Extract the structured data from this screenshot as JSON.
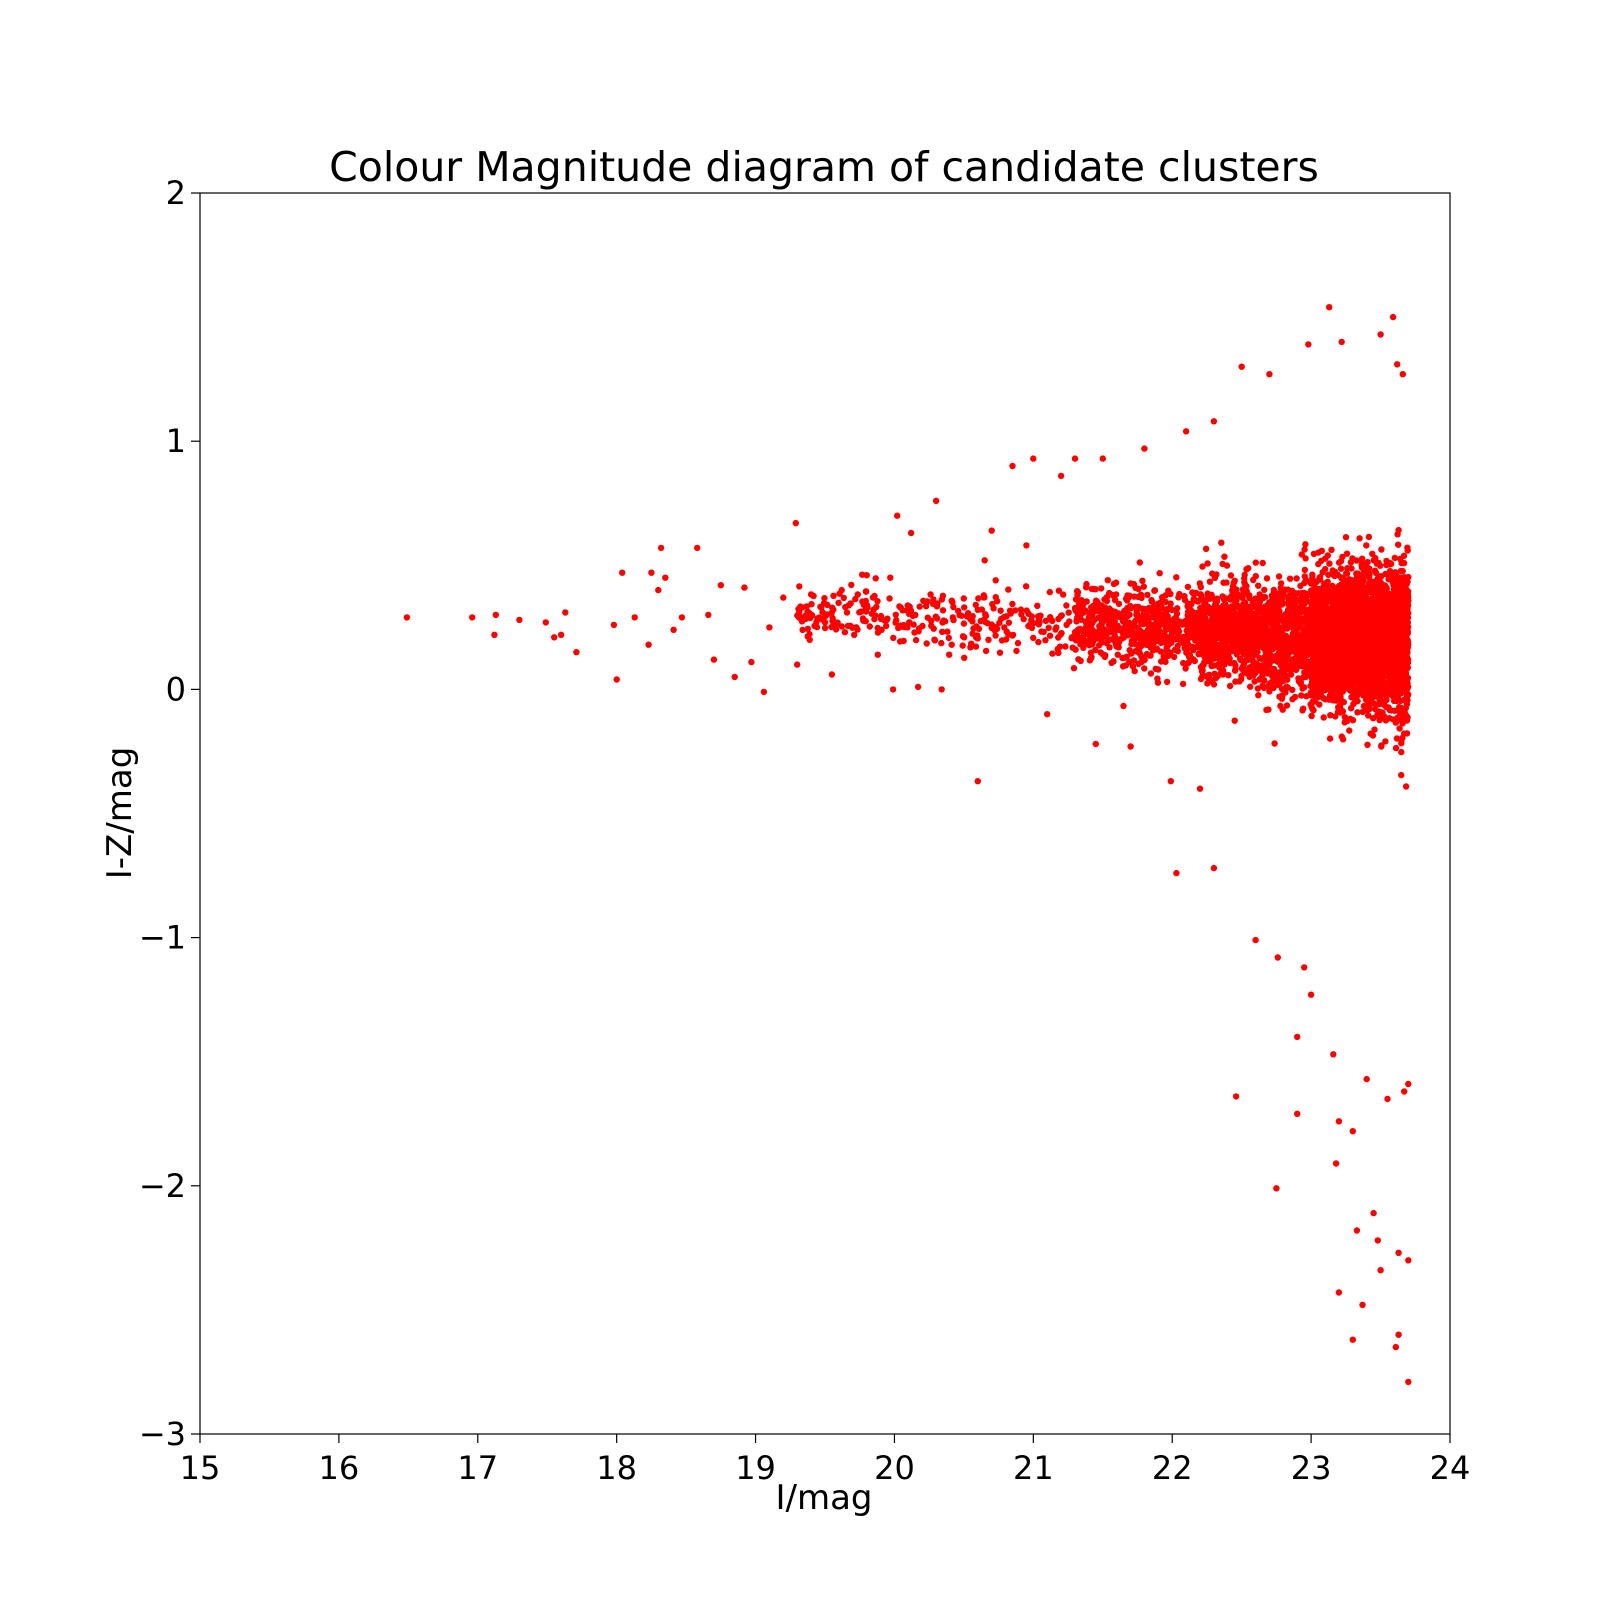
{
  "chart_data": {
    "type": "scatter",
    "title": "Colour Magnitude diagram of candidate clusters",
    "xlabel": "I/mag",
    "ylabel": "I-Z/mag",
    "xlim": [
      15,
      24
    ],
    "ylim": [
      -3,
      2
    ],
    "xticks": [
      15,
      16,
      17,
      18,
      19,
      20,
      21,
      22,
      23,
      24
    ],
    "yticks": [
      -3,
      -2,
      -1,
      0,
      1,
      2
    ],
    "grid": false,
    "legend": "none",
    "series": [
      {
        "color": "#ff0000",
        "marker_note": "dense cloud: small filled circles",
        "points": [
          [
            16.49,
            0.29
          ],
          [
            16.96,
            0.29
          ],
          [
            17.12,
            0.22
          ],
          [
            17.13,
            0.3
          ],
          [
            17.3,
            0.28
          ],
          [
            17.49,
            0.27
          ],
          [
            17.55,
            0.21
          ],
          [
            17.6,
            0.22
          ],
          [
            17.63,
            0.31
          ],
          [
            17.71,
            0.15
          ],
          [
            17.98,
            0.26
          ],
          [
            18.0,
            0.04
          ],
          [
            18.04,
            0.47
          ],
          [
            18.13,
            0.29
          ],
          [
            18.23,
            0.18
          ],
          [
            18.25,
            0.47
          ],
          [
            18.3,
            0.4
          ],
          [
            18.32,
            0.57
          ],
          [
            18.35,
            0.45
          ],
          [
            18.41,
            0.24
          ],
          [
            18.47,
            0.29
          ],
          [
            18.58,
            0.57
          ],
          [
            18.66,
            0.3
          ],
          [
            18.7,
            0.12
          ],
          [
            18.75,
            0.42
          ],
          [
            18.85,
            0.05
          ],
          [
            18.92,
            0.41
          ],
          [
            18.97,
            0.11
          ],
          [
            19.06,
            -0.01
          ],
          [
            19.1,
            0.25
          ],
          [
            19.2,
            0.37
          ],
          [
            19.29,
            0.67
          ],
          [
            19.3,
            0.1
          ],
          [
            19.39,
            0.2
          ],
          [
            19.5,
            0.27
          ],
          [
            19.55,
            0.06
          ],
          [
            19.62,
            0.4
          ],
          [
            19.71,
            0.22
          ],
          [
            19.8,
            0.46
          ],
          [
            19.88,
            0.14
          ],
          [
            19.97,
            0.45
          ],
          [
            19.99,
            0.0
          ],
          [
            20.02,
            0.7
          ],
          [
            20.12,
            0.63
          ],
          [
            20.17,
            0.01
          ],
          [
            20.3,
            0.76
          ],
          [
            20.34,
            0.0
          ],
          [
            20.42,
            0.29
          ],
          [
            20.6,
            -0.37
          ],
          [
            20.65,
            0.52
          ],
          [
            20.7,
            0.64
          ],
          [
            20.85,
            0.9
          ],
          [
            20.95,
            0.58
          ],
          [
            21.0,
            0.93
          ],
          [
            21.1,
            -0.1
          ],
          [
            21.2,
            0.86
          ],
          [
            21.3,
            0.93
          ],
          [
            21.45,
            -0.22
          ],
          [
            21.5,
            0.93
          ],
          [
            21.7,
            -0.23
          ],
          [
            21.8,
            0.97
          ],
          [
            21.9,
            0.08
          ],
          [
            21.99,
            -0.37
          ],
          [
            22.03,
            -0.74
          ],
          [
            22.1,
            1.04
          ],
          [
            22.2,
            -0.4
          ],
          [
            22.3,
            -0.72
          ],
          [
            22.3,
            1.08
          ],
          [
            22.46,
            -1.64
          ],
          [
            22.5,
            1.3
          ],
          [
            22.6,
            -1.01
          ],
          [
            22.7,
            1.27
          ],
          [
            22.75,
            -2.01
          ],
          [
            22.76,
            -1.08
          ],
          [
            22.9,
            -1.4
          ],
          [
            22.9,
            -1.71
          ],
          [
            22.95,
            -1.12
          ],
          [
            22.98,
            1.39
          ],
          [
            23.0,
            -1.23
          ],
          [
            23.13,
            1.54
          ],
          [
            23.16,
            -1.47
          ],
          [
            23.18,
            -1.91
          ],
          [
            23.2,
            -1.74
          ],
          [
            23.2,
            -2.43
          ],
          [
            23.22,
            1.4
          ],
          [
            23.3,
            -2.62
          ],
          [
            23.3,
            -1.78
          ],
          [
            23.33,
            -2.18
          ],
          [
            23.37,
            -2.48
          ],
          [
            23.4,
            -1.57
          ],
          [
            23.45,
            -2.11
          ],
          [
            23.48,
            -2.22
          ],
          [
            23.5,
            1.43
          ],
          [
            23.5,
            -2.34
          ],
          [
            23.55,
            -1.65
          ],
          [
            23.59,
            1.5
          ],
          [
            23.61,
            -2.65
          ],
          [
            23.63,
            -2.6
          ],
          [
            23.63,
            -2.27
          ],
          [
            23.67,
            -1.62
          ],
          [
            23.7,
            -2.79
          ],
          [
            23.7,
            -2.3
          ],
          [
            23.7,
            -1.59
          ],
          [
            23.66,
            1.27
          ],
          [
            23.62,
            1.31
          ]
        ]
      }
    ]
  }
}
